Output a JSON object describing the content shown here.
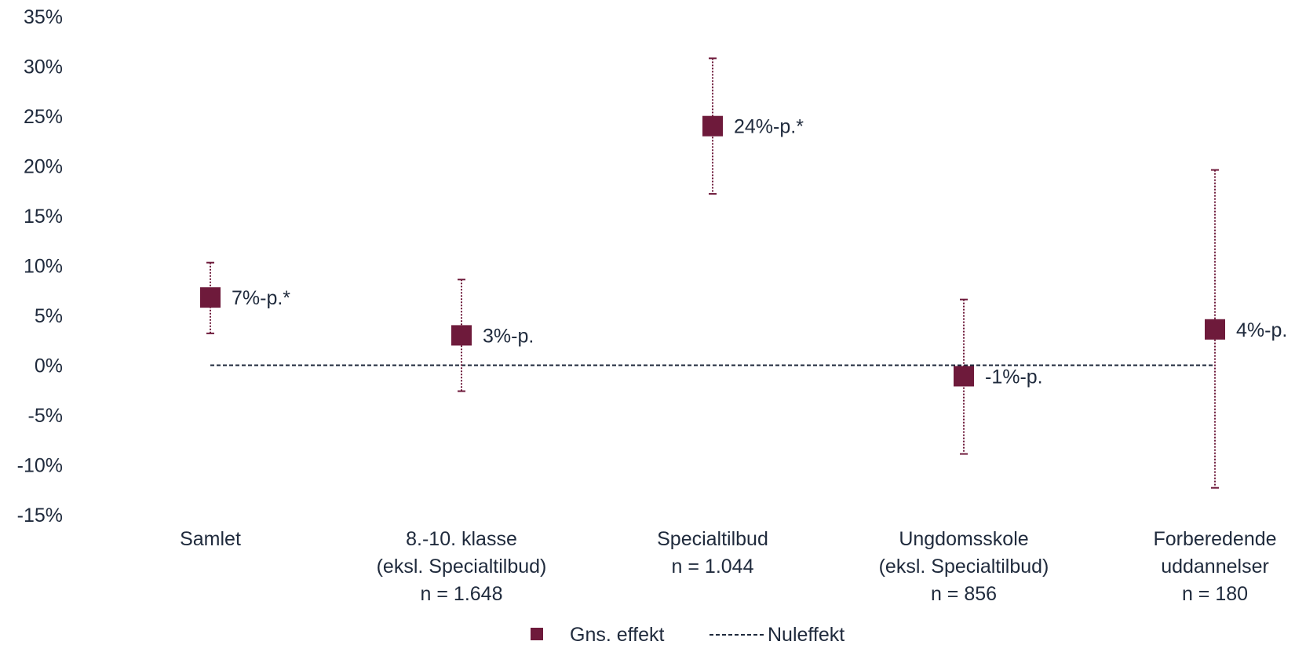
{
  "chart_data": {
    "type": "scatter",
    "title": "",
    "xlabel": "",
    "ylabel": "",
    "ylim": [
      -15,
      35
    ],
    "yticks": [
      35,
      30,
      25,
      20,
      15,
      10,
      5,
      0,
      -5,
      -10,
      -15
    ],
    "ytick_labels": [
      "35%",
      "30%",
      "25%",
      "20%",
      "15%",
      "10%",
      "5%",
      "0%",
      "-5%",
      "-10%",
      "-15%"
    ],
    "categories": [
      {
        "lines": [
          "Samlet"
        ]
      },
      {
        "lines": [
          "8.-10. klasse",
          "(eksl. Specialtilbud)",
          "n = 1.648"
        ]
      },
      {
        "lines": [
          "Specialtilbud",
          "n = 1.044"
        ]
      },
      {
        "lines": [
          "Ungdomsskole",
          "(eksl. Specialtilbud)",
          "n = 856"
        ]
      },
      {
        "lines": [
          "Forberedende",
          "uddannelser",
          "n = 180"
        ]
      }
    ],
    "series": [
      {
        "name": "Gns. effekt",
        "values": [
          6.8,
          3.0,
          24.0,
          -1.1,
          3.6
        ],
        "ci_low": [
          3.2,
          -2.6,
          17.2,
          -8.9,
          -12.3
        ],
        "ci_high": [
          10.3,
          8.6,
          30.8,
          6.6,
          19.6
        ],
        "labels": [
          "7%-p.*",
          "3%-p.",
          "24%-p.*",
          "-1%-p.",
          "4%-p."
        ]
      }
    ],
    "reference_line": {
      "name": "Nuleffekt",
      "value": 0
    },
    "legend": {
      "position": "bottom",
      "items": [
        "Gns. effekt",
        "Nuleffekt"
      ]
    },
    "colors": {
      "marker": "#6e1a3b",
      "reference": "#1f2a3c",
      "text": "#1f2a3c"
    },
    "grid": false
  }
}
